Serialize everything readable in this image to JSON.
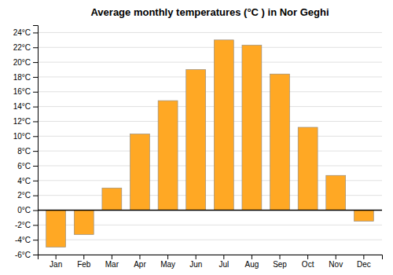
{
  "chart_data": {
    "type": "bar",
    "title": "Average monthly temperatures (°C ) in Nor Geghi",
    "categories": [
      "Jan",
      "Feb",
      "Mar",
      "Apr",
      "May",
      "Jun",
      "Jul",
      "Aug",
      "Sep",
      "Oct",
      "Nov",
      "Dec"
    ],
    "values": [
      -5.0,
      -3.3,
      3.0,
      10.3,
      14.8,
      19.0,
      23.0,
      22.3,
      18.4,
      11.2,
      4.7,
      -1.5
    ],
    "color": "#FFA824",
    "ylim": [
      -6,
      25
    ],
    "yticks": [
      {
        "value": -6,
        "label": "-6°C"
      },
      {
        "value": -4,
        "label": "-4°C"
      },
      {
        "value": -2,
        "label": "-2°C"
      },
      {
        "value": 0,
        "label": "0°C"
      },
      {
        "value": 2,
        "label": "2°C"
      },
      {
        "value": 4,
        "label": "4°C"
      },
      {
        "value": 6,
        "label": "6°C"
      },
      {
        "value": 8,
        "label": "8°C"
      },
      {
        "value": 10,
        "label": "10°C"
      },
      {
        "value": 12,
        "label": "12°C"
      },
      {
        "value": 14,
        "label": "14°C"
      },
      {
        "value": 16,
        "label": "16°C"
      },
      {
        "value": 18,
        "label": "18°C"
      },
      {
        "value": 20,
        "label": "20°C"
      },
      {
        "value": 22,
        "label": "22°C"
      },
      {
        "value": 24,
        "label": "24°C"
      }
    ],
    "grid": true
  }
}
